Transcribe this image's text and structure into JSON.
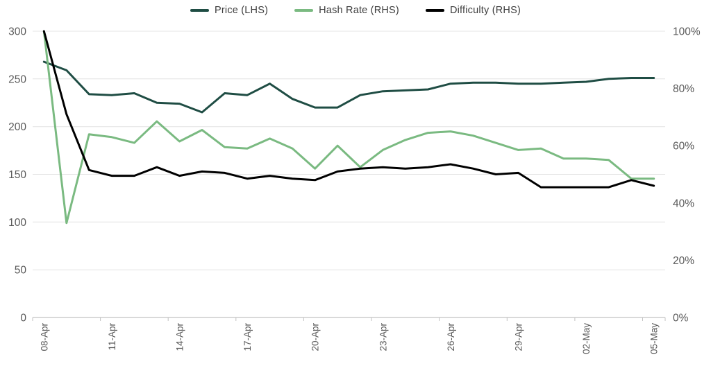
{
  "chart_data": {
    "type": "line",
    "title": "",
    "n_points": 28,
    "x_tick_labels": [
      "08-Apr",
      "11-Apr",
      "14-Apr",
      "17-Apr",
      "20-Apr",
      "23-Apr",
      "26-Apr",
      "29-Apr",
      "02-May",
      "05-May"
    ],
    "x_tick_interval": 3,
    "left_axis": {
      "min": 0,
      "max": 300,
      "step": 50,
      "tick_labels": [
        "0",
        "50",
        "100",
        "150",
        "200",
        "250",
        "300"
      ]
    },
    "right_axis": {
      "min": 0,
      "max": 100,
      "step": 20,
      "tick_labels": [
        "0%",
        "20%",
        "40%",
        "60%",
        "80%",
        "100%"
      ],
      "unit": "%"
    },
    "grid": "horizontal",
    "legend_position": "top-center",
    "series": [
      {
        "name": "Price (LHS)",
        "axis": "left",
        "color": "#1f4d44",
        "values": [
          268,
          259,
          234,
          233,
          235,
          225,
          224,
          215,
          235,
          233,
          245,
          229,
          220,
          220,
          233,
          237,
          238,
          239,
          245,
          246,
          246,
          245,
          245,
          246,
          247,
          250,
          251,
          251
        ]
      },
      {
        "name": "Hash Rate (RHS)",
        "axis": "right",
        "color": "#7aba81",
        "values": [
          100,
          33,
          64,
          63,
          61,
          68.5,
          61.5,
          65.5,
          59.5,
          59,
          62.5,
          59,
          52,
          60,
          52.5,
          58.5,
          62,
          64.5,
          65,
          63.5,
          61,
          58.5,
          59,
          55.5,
          55.5,
          55,
          48.5,
          48.5
        ]
      },
      {
        "name": "Difficulty (RHS)",
        "axis": "right",
        "color": "#000000",
        "values": [
          100,
          71,
          51.5,
          49.5,
          49.5,
          52.5,
          49.5,
          51,
          50.5,
          48.5,
          49.5,
          48.5,
          48,
          51,
          52,
          52.5,
          52,
          52.5,
          53.5,
          52,
          50,
          50.5,
          45.5,
          45.5,
          45.5,
          45.5,
          48,
          46
        ]
      }
    ],
    "colors": {
      "grid": "#e4e4e4",
      "axis_line": "#c2c2c2",
      "tick_text": "#595959"
    }
  }
}
